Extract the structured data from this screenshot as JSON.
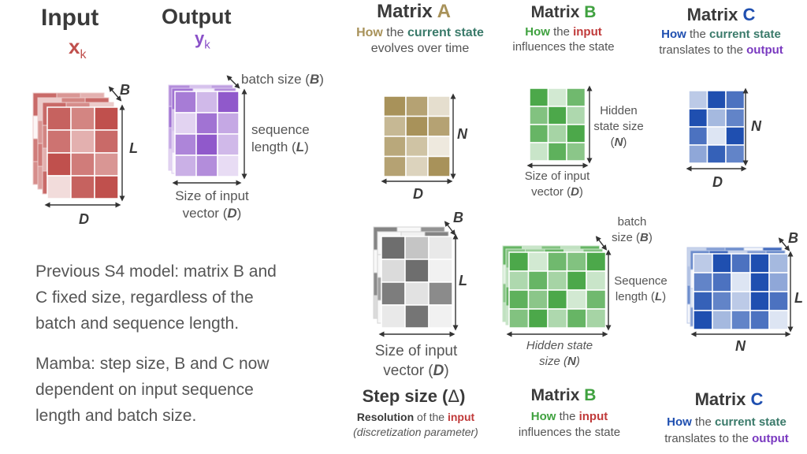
{
  "input": {
    "title": "Input",
    "symbol": "x",
    "subscript": "k",
    "dim_b": "B",
    "dim_l": "L",
    "dim_d": "D"
  },
  "output": {
    "title": "Output",
    "symbol": "y",
    "subscript": "k",
    "batch_size_pre": "batch size (",
    "batch_size_var": "B",
    "batch_size_post": ")",
    "seq_line1": "sequence",
    "seq_pre": "length (",
    "seq_var": "L",
    "seq_post": ")",
    "size_line1": "Size of input",
    "size_pre": "vector (",
    "size_var": "D",
    "size_post": ")"
  },
  "matrix_a": {
    "prefix": "Matrix ",
    "letter": "A",
    "d1": "How",
    "d2": " the ",
    "d3": "current state",
    "line2": "evolves over time",
    "dim_n": "N",
    "dim_d": "D"
  },
  "matrix_b_top": {
    "prefix": "Matrix ",
    "letter": "B",
    "d1": "How",
    "d2": " the ",
    "d3": "input",
    "line2": "influences the state",
    "hidden_line1": "Hidden",
    "hidden_line2": "state size",
    "hidden_pre": "(",
    "hidden_var": "N",
    "hidden_post": ")",
    "size_line1": "Size of input",
    "size_pre": "vector (",
    "size_var": "D",
    "size_post": ")"
  },
  "matrix_c_top": {
    "prefix": "Matrix ",
    "letter": "C",
    "d1": "How",
    "d2": " the ",
    "d3": "current state",
    "l2a": "translates to the ",
    "l2b": "output",
    "dim_n": "N",
    "dim_d": "D"
  },
  "step": {
    "title_pre": "Step size (",
    "title_sym": "Δ",
    "title_post": ")",
    "r1": "Resolution",
    "r2": " of the ",
    "r3": "input",
    "note": "(discretization parameter)",
    "dim_b": "B",
    "dim_l": "L",
    "size_line1": "Size of input",
    "size_pre": "vector (",
    "size_var": "D",
    "size_post": ")"
  },
  "matrix_b_bottom": {
    "prefix": "Matrix ",
    "letter": "B",
    "d1": "How",
    "d2": " the ",
    "d3": "input",
    "line2": "influences the state",
    "batch_line1": "batch",
    "batch_pre": "size (",
    "batch_var": "B",
    "batch_post": ")",
    "seq_line1": "Sequence",
    "seq_pre": "length (",
    "seq_var": "L",
    "seq_post": ")",
    "hidden_line1": "Hidden state",
    "hidden_pre": "size (",
    "hidden_var": "N",
    "hidden_post": ")"
  },
  "matrix_c_bottom": {
    "prefix": "Matrix ",
    "letter": "C",
    "d1": "How",
    "d2": " the ",
    "d3": "current state",
    "l2a": "translates to the ",
    "l2b": "output",
    "dim_b": "B",
    "dim_l": "L",
    "dim_n": "N"
  },
  "notes": {
    "s4_line1": "Previous S4 model: matrix B and",
    "s4_line2": "C fixed size, regardless of the",
    "s4_line3": "batch and sequence length.",
    "mamba_line1": "Mamba: step size, B and C now",
    "mamba_line2": "dependent on input sequence",
    "mamba_line3": "length and batch size."
  },
  "colors": {
    "input_red": "#c0504d",
    "output_purple": "#8a50c8",
    "matrix_a": "#a8925a",
    "green": "#4ca84a",
    "blue": "#1f4fb0",
    "step_gray": "#6e6e6e",
    "label_gold": "#a8925a",
    "label_teal": "#3a7a6a",
    "label_green": "#3fa13f",
    "label_red": "#c03a3a",
    "label_blue": "#1f4fb0",
    "label_purple": "#7a3ac0"
  }
}
